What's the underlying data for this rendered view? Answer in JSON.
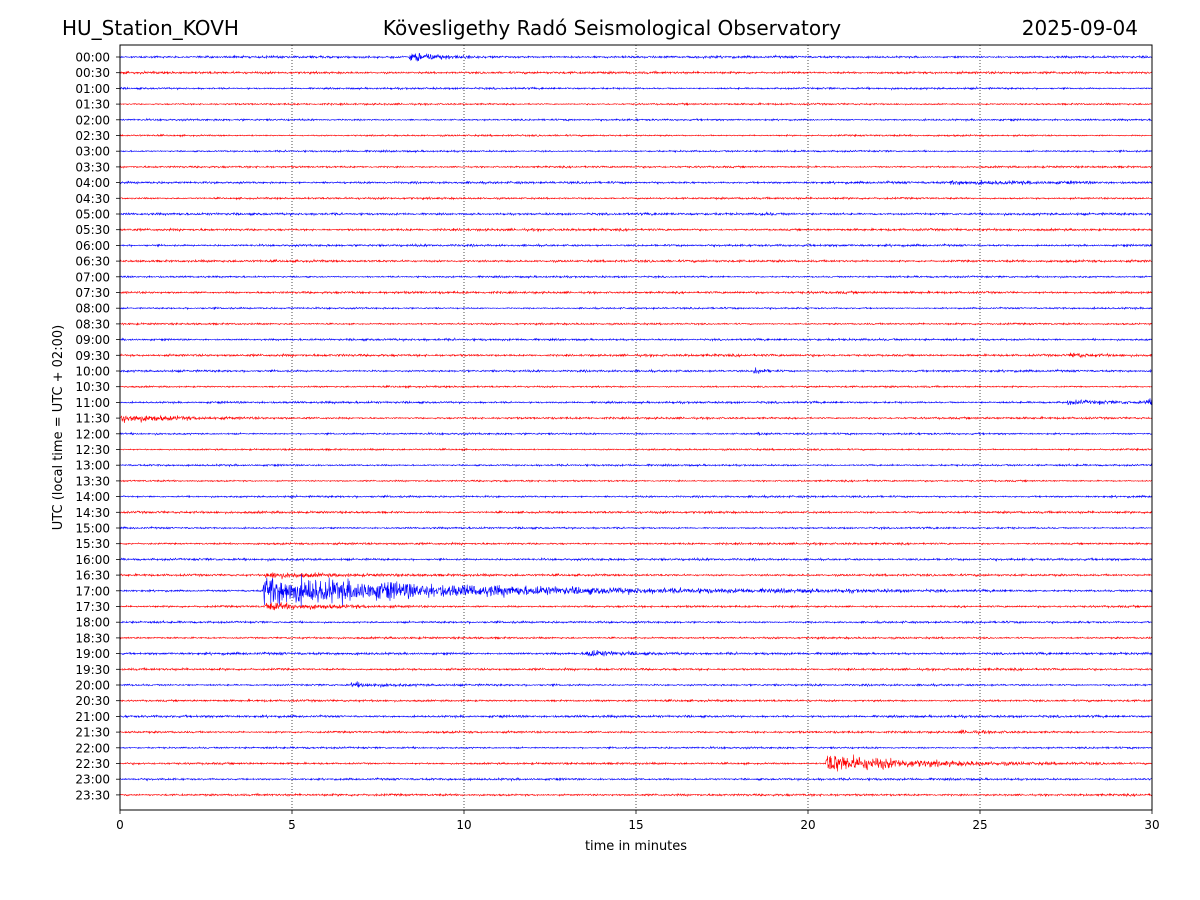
{
  "header": {
    "station": "HU_Station_KOVH",
    "title": "Kövesligethy Radó Seismological Observatory",
    "date": "2025-09-04"
  },
  "chart_data": {
    "type": "line",
    "title": "Kövesligethy Radó Seismological Observatory",
    "xlabel": "time in minutes",
    "ylabel": "UTC (local time = UTC + 02:00)",
    "xlim": [
      0,
      30
    ],
    "x_ticks": [
      0,
      5,
      10,
      15,
      20,
      25,
      30
    ],
    "grid": "vertical dotted lines at x ticks",
    "trace_colors": [
      "#0000ff",
      "#ff0000"
    ],
    "rows": [
      "00:00",
      "00:30",
      "01:00",
      "01:30",
      "02:00",
      "02:30",
      "03:00",
      "03:30",
      "04:00",
      "04:30",
      "05:00",
      "05:30",
      "06:00",
      "06:30",
      "07:00",
      "07:30",
      "08:00",
      "08:30",
      "09:00",
      "09:30",
      "10:00",
      "10:30",
      "11:00",
      "11:30",
      "12:00",
      "12:30",
      "13:00",
      "13:30",
      "14:00",
      "14:30",
      "15:00",
      "15:30",
      "16:00",
      "16:30",
      "17:00",
      "17:30",
      "18:00",
      "18:30",
      "19:00",
      "19:30",
      "20:00",
      "20:30",
      "21:00",
      "21:30",
      "22:00",
      "22:30",
      "23:00",
      "23:30"
    ],
    "events": [
      {
        "row": "00:00",
        "start_min": 8.4,
        "duration_min": 1.2,
        "amplitude": 1.1
      },
      {
        "row": "04:00",
        "start_min": 24.1,
        "duration_min": 5.9,
        "amplitude": 0.25
      },
      {
        "row": "05:00",
        "start_min": 18.6,
        "duration_min": 0.5,
        "amplitude": 0.3
      },
      {
        "row": "09:30",
        "start_min": 27.6,
        "duration_min": 0.8,
        "amplitude": 0.45
      },
      {
        "row": "10:00",
        "start_min": 18.4,
        "duration_min": 0.5,
        "amplitude": 0.7
      },
      {
        "row": "11:00",
        "start_min": 27.5,
        "duration_min": 2.5,
        "amplitude": 0.3
      },
      {
        "row": "11:00",
        "start_min": 29.8,
        "duration_min": 0.2,
        "amplitude": 1.0
      },
      {
        "row": "11:30",
        "start_min": 0.0,
        "duration_min": 2.0,
        "amplitude": 0.9
      },
      {
        "row": "12:00",
        "start_min": 18.5,
        "duration_min": 0.4,
        "amplitude": 0.3
      },
      {
        "row": "16:30",
        "start_min": 4.2,
        "duration_min": 3.0,
        "amplitude": 0.6
      },
      {
        "row": "17:00",
        "start_min": 4.15,
        "duration_min": 9.0,
        "amplitude": 3.0
      },
      {
        "row": "17:30",
        "start_min": 4.2,
        "duration_min": 3.0,
        "amplitude": 0.7
      },
      {
        "row": "19:00",
        "start_min": 13.5,
        "duration_min": 1.3,
        "amplitude": 0.7
      },
      {
        "row": "20:00",
        "start_min": 6.7,
        "duration_min": 1.4,
        "amplitude": 0.45
      },
      {
        "row": "21:30",
        "start_min": 24.4,
        "duration_min": 1.5,
        "amplitude": 0.25
      },
      {
        "row": "22:30",
        "start_min": 20.5,
        "duration_min": 3.5,
        "amplitude": 2.0
      }
    ]
  }
}
